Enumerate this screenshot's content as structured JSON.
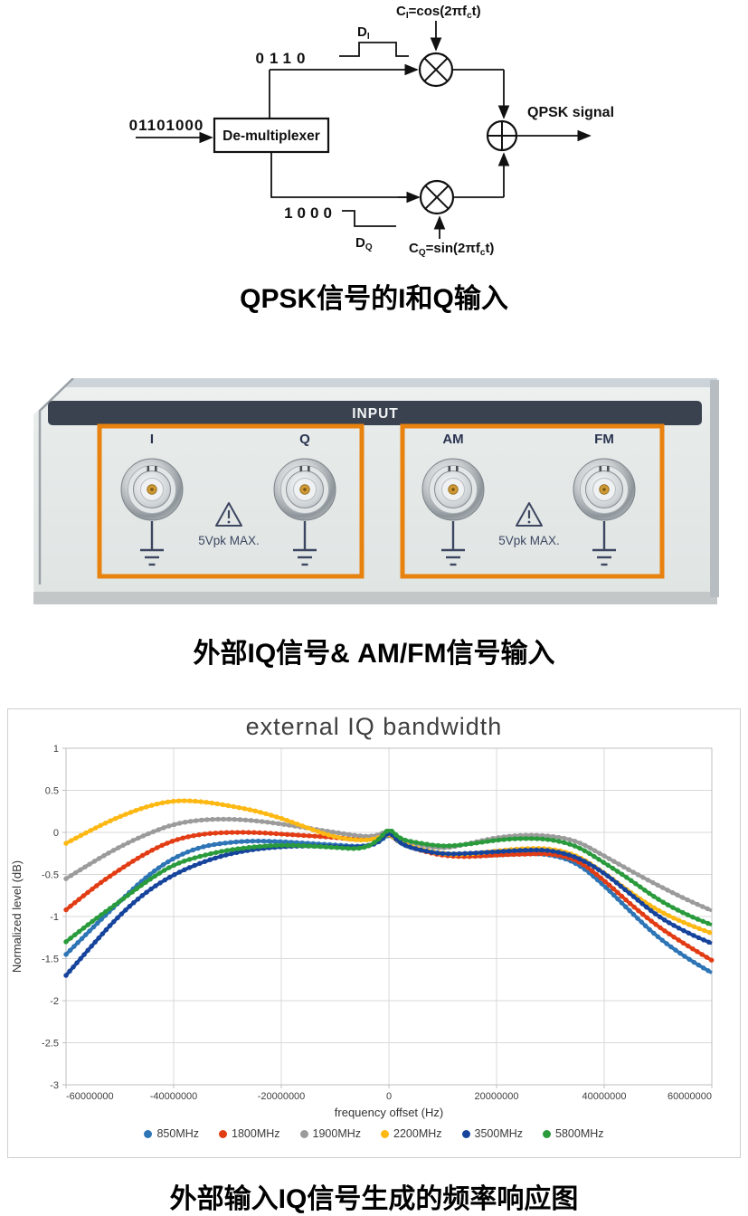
{
  "diagram": {
    "input_bits": "01101000",
    "demux_label": "De-multiplexer",
    "i_bits": "0110",
    "q_bits": "1000",
    "d_i": {
      "main": "D",
      "sub": "I"
    },
    "d_q": {
      "main": "D",
      "sub": "Q"
    },
    "c_i": {
      "main": "C",
      "sub": "I",
      "eq": "=cos(2πf",
      "sub2": "c",
      "rest": "t)"
    },
    "c_q": {
      "main": "C",
      "sub": "Q",
      "eq": "=sin(2πf",
      "sub2": "c",
      "rest": "t)"
    },
    "output_label": "QPSK signal",
    "caption": "QPSK信号的I和Q输入"
  },
  "panel": {
    "header": "INPUT",
    "connectors": [
      "I",
      "Q",
      "AM",
      "FM"
    ],
    "warning_text": "5Vpk MAX.",
    "accent_color": "#e8820f",
    "caption": "外部IQ信号& AM/FM信号输入"
  },
  "chart_data": {
    "type": "scatter",
    "title": "external IQ bandwidth",
    "xlabel": "frequency offset (Hz)",
    "ylabel": "Normalized level (dB)",
    "xlim": [
      -60000000,
      60000000
    ],
    "ylim": [
      -3,
      1
    ],
    "grid": true,
    "legend_position": "bottom",
    "xticks": [
      -60000000,
      -40000000,
      -20000000,
      0,
      20000000,
      40000000,
      60000000
    ],
    "xtick_labels": [
      "-60000000",
      "-40000000",
      "-20000000",
      "0",
      "20000000",
      "40000000",
      "60000000"
    ],
    "yticks": [
      1,
      0.5,
      0,
      -0.5,
      -1,
      -1.5,
      -2,
      -2.5,
      -3
    ],
    "ytick_labels": [
      "1",
      "0.5",
      "0",
      "-0.5",
      "-1",
      "-1.5",
      "-2",
      "-2.5",
      "-3"
    ],
    "x_MHz": [
      -60,
      -55,
      -50,
      -45,
      -40,
      -35,
      -30,
      -25,
      -20,
      -15,
      -10,
      -5,
      -2,
      0,
      2,
      5,
      10,
      15,
      20,
      25,
      30,
      35,
      40,
      45,
      50,
      55,
      60
    ],
    "series": [
      {
        "name": "850MHz",
        "color": "#2e75b6",
        "values": [
          -1.45,
          -1.13,
          -0.82,
          -0.52,
          -0.3,
          -0.17,
          -0.12,
          -0.1,
          -0.11,
          -0.13,
          -0.15,
          -0.17,
          -0.13,
          -0.01,
          -0.13,
          -0.2,
          -0.26,
          -0.28,
          -0.27,
          -0.25,
          -0.26,
          -0.36,
          -0.63,
          -0.95,
          -1.25,
          -1.48,
          -1.67
        ]
      },
      {
        "name": "1800MHz",
        "color": "#e23c14",
        "values": [
          -0.92,
          -0.66,
          -0.44,
          -0.24,
          -0.09,
          -0.02,
          0.0,
          0.0,
          -0.02,
          -0.04,
          -0.06,
          -0.09,
          -0.07,
          -0.01,
          -0.12,
          -0.2,
          -0.28,
          -0.29,
          -0.27,
          -0.26,
          -0.25,
          -0.32,
          -0.57,
          -0.86,
          -1.12,
          -1.33,
          -1.52
        ]
      },
      {
        "name": "1900MHz",
        "color": "#9b9b9b",
        "values": [
          -0.55,
          -0.35,
          -0.17,
          -0.02,
          0.1,
          0.15,
          0.16,
          0.14,
          0.1,
          0.05,
          0.0,
          -0.05,
          -0.04,
          0.04,
          -0.08,
          -0.14,
          -0.2,
          -0.13,
          -0.06,
          -0.03,
          -0.04,
          -0.1,
          -0.28,
          -0.46,
          -0.63,
          -0.79,
          -0.93
        ]
      },
      {
        "name": "2200MHz",
        "color": "#fdb813",
        "values": [
          -0.13,
          0.04,
          0.19,
          0.31,
          0.38,
          0.37,
          0.32,
          0.26,
          0.17,
          0.05,
          -0.06,
          -0.1,
          -0.07,
          -0.01,
          -0.12,
          -0.19,
          -0.26,
          -0.26,
          -0.22,
          -0.19,
          -0.19,
          -0.27,
          -0.48,
          -0.72,
          -0.93,
          -1.08,
          -1.2
        ]
      },
      {
        "name": "3500MHz",
        "color": "#16449c",
        "values": [
          -1.7,
          -1.33,
          -0.98,
          -0.7,
          -0.5,
          -0.36,
          -0.26,
          -0.2,
          -0.17,
          -0.16,
          -0.17,
          -0.18,
          -0.13,
          0.02,
          -0.13,
          -0.2,
          -0.26,
          -0.25,
          -0.23,
          -0.21,
          -0.21,
          -0.29,
          -0.48,
          -0.74,
          -1.0,
          -1.18,
          -1.32
        ]
      },
      {
        "name": "5800MHz",
        "color": "#2a9b3c",
        "values": [
          -1.3,
          -1.05,
          -0.82,
          -0.58,
          -0.38,
          -0.28,
          -0.21,
          -0.17,
          -0.15,
          -0.16,
          -0.18,
          -0.2,
          -0.1,
          0.06,
          -0.08,
          -0.12,
          -0.17,
          -0.14,
          -0.09,
          -0.07,
          -0.08,
          -0.16,
          -0.36,
          -0.57,
          -0.8,
          -0.97,
          -1.1
        ]
      }
    ],
    "caption": "外部输入IQ信号生成的频率响应图"
  }
}
